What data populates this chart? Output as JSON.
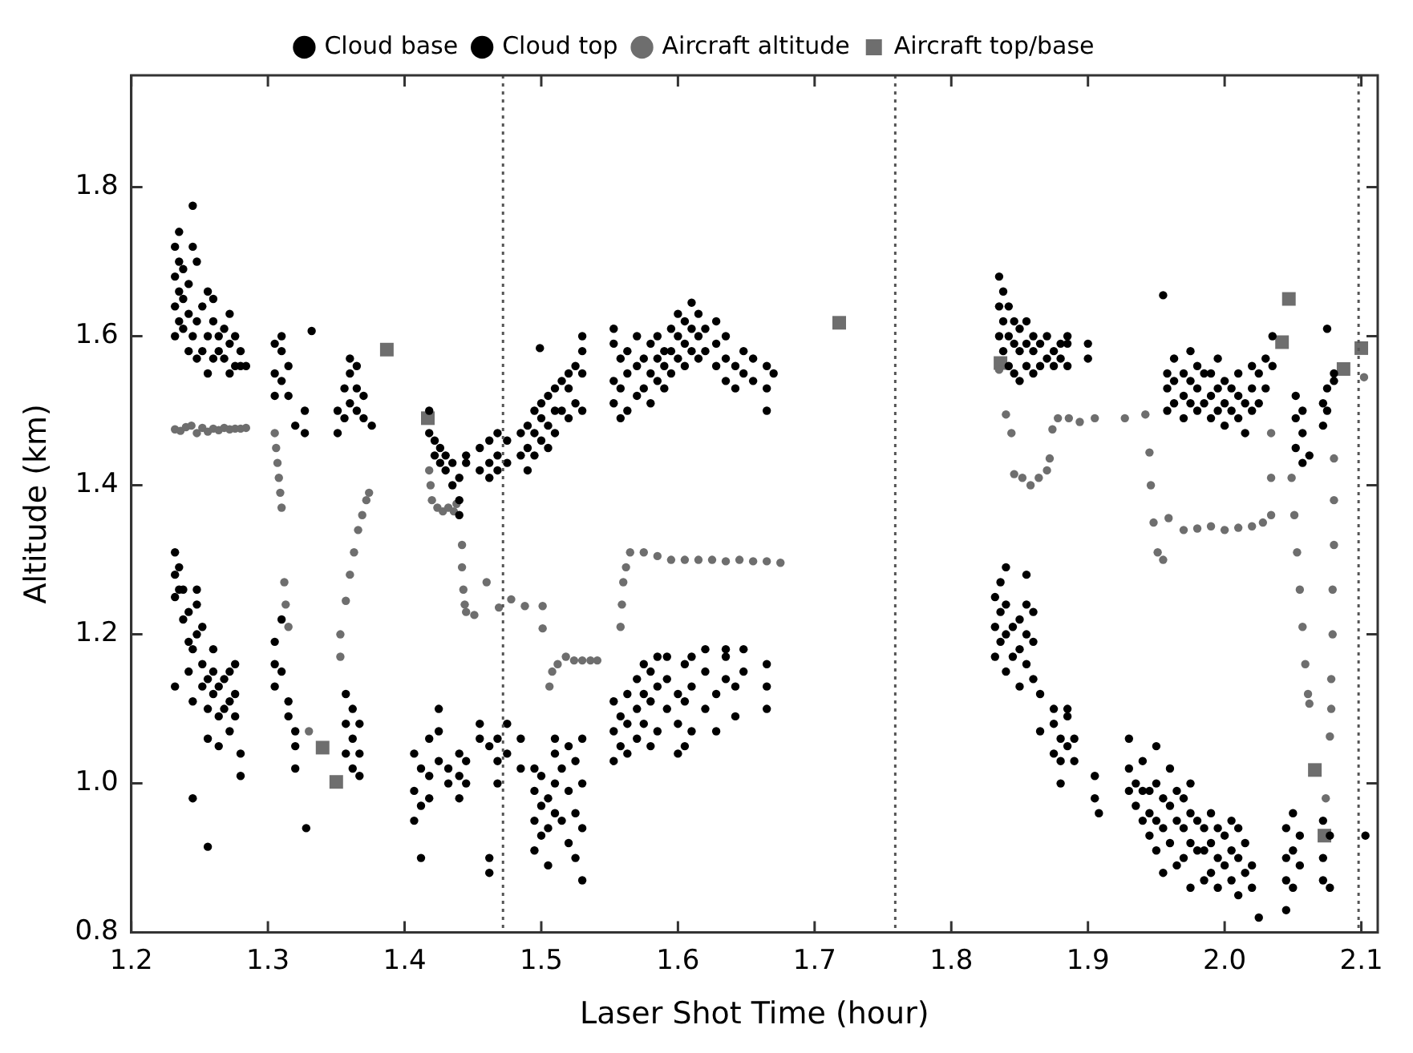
{
  "chart_data": {
    "type": "scatter",
    "xlabel": "Laser Shot Time (hour)",
    "ylabel": "Altitude (km)",
    "xlim": [
      1.2,
      2.112
    ],
    "xticks": [
      1.2,
      1.3,
      1.4,
      1.5,
      1.6,
      1.7,
      1.8,
      1.9,
      {
        "value": 2,
        "label": "2.0"
      },
      2.1
    ],
    "ylim": [
      0.8,
      1.95
    ],
    "yticks": [
      0.8,
      {
        "value": 1,
        "label": "1.0"
      },
      1.2,
      1.4,
      1.6,
      1.8
    ],
    "grid": false,
    "legend": "top",
    "ref_lines": [
      {
        "axis": "x",
        "value": 1.472,
        "color": "#555555",
        "line_style": "dotted"
      },
      {
        "axis": "x",
        "value": 1.759,
        "color": "#555555",
        "line_style": "dotted"
      },
      {
        "axis": "x",
        "value": 2.098,
        "color": "#555555",
        "line_style": "dotted"
      }
    ],
    "series": [
      {
        "name": "Cloud base",
        "color": "#000000",
        "marker": "circle",
        "x": [
          1.232,
          1.232,
          1.232,
          1.232,
          1.235,
          1.235,
          1.238,
          1.238,
          1.242,
          1.242,
          1.242,
          1.245,
          1.245,
          1.245,
          1.248,
          1.248,
          1.248,
          1.252,
          1.252,
          1.252,
          1.256,
          1.256,
          1.256,
          1.256,
          1.26,
          1.26,
          1.26,
          1.264,
          1.264,
          1.264,
          1.268,
          1.268,
          1.272,
          1.272,
          1.272,
          1.276,
          1.276,
          1.276,
          1.28,
          1.28,
          1.305,
          1.305,
          1.305,
          1.31,
          1.31,
          1.315,
          1.315,
          1.32,
          1.32,
          1.32,
          1.328,
          1.357,
          1.357,
          1.357,
          1.362,
          1.362,
          1.362,
          1.367,
          1.367,
          1.367,
          1.407,
          1.407,
          1.407,
          1.412,
          1.412,
          1.412,
          1.418,
          1.418,
          1.418,
          1.425,
          1.425,
          1.425,
          1.432,
          1.432,
          1.44,
          1.44,
          1.44,
          1.445,
          1.445,
          1.455,
          1.455,
          1.462,
          1.462,
          1.462,
          1.468,
          1.468,
          1.468,
          1.475,
          1.475,
          1.485,
          1.485,
          1.495,
          1.495,
          1.495,
          1.495,
          1.5,
          1.5,
          1.5,
          1.505,
          1.505,
          1.505,
          1.51,
          1.51,
          1.51,
          1.51,
          1.515,
          1.515,
          1.52,
          1.52,
          1.52,
          1.525,
          1.525,
          1.525,
          1.53,
          1.53,
          1.53,
          1.53,
          1.553,
          1.553,
          1.553,
          1.558,
          1.558,
          1.563,
          1.563,
          1.563,
          1.57,
          1.57,
          1.57,
          1.575,
          1.575,
          1.575,
          1.58,
          1.58,
          1.58,
          1.585,
          1.585,
          1.585,
          1.592,
          1.592,
          1.592,
          1.6,
          1.6,
          1.6,
          1.605,
          1.605,
          1.605,
          1.61,
          1.61,
          1.61,
          1.62,
          1.62,
          1.62,
          1.628,
          1.628,
          1.635,
          1.635,
          1.635,
          1.642,
          1.642,
          1.648,
          1.648,
          1.665,
          1.665,
          1.665,
          1.832,
          1.832,
          1.832,
          1.836,
          1.836,
          1.836,
          1.84,
          1.84,
          1.84,
          1.84,
          1.845,
          1.845,
          1.85,
          1.85,
          1.85,
          1.855,
          1.855,
          1.855,
          1.855,
          1.86,
          1.86,
          1.86,
          1.865,
          1.865,
          1.875,
          1.875,
          1.875,
          1.88,
          1.88,
          1.88,
          1.885,
          1.885,
          1.885,
          1.89,
          1.89,
          1.905,
          1.905,
          1.908,
          1.93,
          1.93,
          1.93,
          1.935,
          1.935,
          1.94,
          1.94,
          1.94,
          1.945,
          1.945,
          1.945,
          1.95,
          1.95,
          1.95,
          1.95,
          1.955,
          1.955,
          1.955,
          1.96,
          1.96,
          1.96,
          1.965,
          1.965,
          1.965,
          1.97,
          1.97,
          1.97,
          1.975,
          1.975,
          1.975,
          1.975,
          1.98,
          1.98,
          1.985,
          1.985,
          1.985,
          1.99,
          1.99,
          1.99,
          1.995,
          1.995,
          1.995,
          2.0,
          2.0,
          2.005,
          2.005,
          2.005,
          2.01,
          2.01,
          2.01,
          2.015,
          2.015,
          2.02,
          2.02,
          2.025,
          2.045,
          2.045,
          2.045,
          2.045,
          2.05,
          2.05,
          2.05,
          2.055,
          2.055,
          2.072,
          2.072,
          2.072,
          2.077,
          2.077,
          2.103
        ],
        "values": [
          1.13,
          1.25,
          1.28,
          1.31,
          1.26,
          1.29,
          1.22,
          1.26,
          1.15,
          1.19,
          1.23,
          1.11,
          1.18,
          0.98,
          1.2,
          1.24,
          1.26,
          1.13,
          1.16,
          1.21,
          1.06,
          1.1,
          1.14,
          0.915,
          1.12,
          1.15,
          1.18,
          1.05,
          1.09,
          1.13,
          1.1,
          1.14,
          1.07,
          1.11,
          1.15,
          1.09,
          1.12,
          1.16,
          1.01,
          1.04,
          1.13,
          1.16,
          1.19,
          1.15,
          1.22,
          1.09,
          1.11,
          1.02,
          1.05,
          1.07,
          0.94,
          1.04,
          1.08,
          1.12,
          1.02,
          1.06,
          1.1,
          1.01,
          1.04,
          1.08,
          0.95,
          0.99,
          1.04,
          0.9,
          0.97,
          1.02,
          0.98,
          1.01,
          1.06,
          1.03,
          1.07,
          1.1,
          1.0,
          1.02,
          0.98,
          1.01,
          1.04,
          1.0,
          1.03,
          1.08,
          1.06,
          0.88,
          0.9,
          1.05,
          1.0,
          1.03,
          1.06,
          1.04,
          1.08,
          1.02,
          1.06,
          0.91,
          0.95,
          0.99,
          1.02,
          0.93,
          0.97,
          1.01,
          0.89,
          0.94,
          0.98,
          0.96,
          1.0,
          1.04,
          1.06,
          0.95,
          1.02,
          0.92,
          0.99,
          1.05,
          0.9,
          0.96,
          1.03,
          0.87,
          0.94,
          1.0,
          1.06,
          1.03,
          1.07,
          1.11,
          1.05,
          1.09,
          1.04,
          1.08,
          1.12,
          1.06,
          1.1,
          1.14,
          1.08,
          1.12,
          1.16,
          1.05,
          1.11,
          1.15,
          1.07,
          1.13,
          1.17,
          1.1,
          1.14,
          1.17,
          1.04,
          1.08,
          1.12,
          1.05,
          1.11,
          1.16,
          1.07,
          1.13,
          1.17,
          1.1,
          1.15,
          1.18,
          1.07,
          1.12,
          1.14,
          1.17,
          1.18,
          1.09,
          1.13,
          1.15,
          1.18,
          1.1,
          1.13,
          1.16,
          1.17,
          1.21,
          1.25,
          1.19,
          1.23,
          1.27,
          1.15,
          1.2,
          1.24,
          1.29,
          1.17,
          1.21,
          1.13,
          1.18,
          1.22,
          1.16,
          1.2,
          1.24,
          1.28,
          1.14,
          1.19,
          1.23,
          1.07,
          1.12,
          1.04,
          1.08,
          1.1,
          1.0,
          1.03,
          1.06,
          1.05,
          1.09,
          1.1,
          1.03,
          1.06,
          0.98,
          1.01,
          0.96,
          0.99,
          1.02,
          1.06,
          0.97,
          1.0,
          0.95,
          0.99,
          1.03,
          0.93,
          0.96,
          0.99,
          0.91,
          0.95,
          1.0,
          1.05,
          0.88,
          0.94,
          0.98,
          0.92,
          0.97,
          1.02,
          0.89,
          0.95,
          0.99,
          0.9,
          0.94,
          0.98,
          0.86,
          0.92,
          0.96,
          1.0,
          0.91,
          0.95,
          0.87,
          0.91,
          0.94,
          0.88,
          0.92,
          0.96,
          0.86,
          0.9,
          0.94,
          0.89,
          0.93,
          0.87,
          0.91,
          0.95,
          0.85,
          0.9,
          0.94,
          0.88,
          0.92,
          0.86,
          0.89,
          0.82,
          0.83,
          0.87,
          0.9,
          0.94,
          0.86,
          0.91,
          0.96,
          0.89,
          0.93,
          0.87,
          0.9,
          0.95,
          0.86,
          0.93,
          0.93
        ]
      },
      {
        "name": "Cloud top",
        "color": "#000000",
        "marker": "circle",
        "x": [
          1.232,
          1.232,
          1.232,
          1.232,
          1.235,
          1.235,
          1.235,
          1.235,
          1.238,
          1.238,
          1.238,
          1.242,
          1.242,
          1.242,
          1.245,
          1.245,
          1.245,
          1.248,
          1.248,
          1.248,
          1.252,
          1.252,
          1.256,
          1.256,
          1.256,
          1.26,
          1.26,
          1.26,
          1.264,
          1.264,
          1.268,
          1.268,
          1.272,
          1.272,
          1.272,
          1.276,
          1.276,
          1.28,
          1.28,
          1.284,
          1.305,
          1.305,
          1.305,
          1.31,
          1.31,
          1.31,
          1.315,
          1.315,
          1.32,
          1.327,
          1.327,
          1.332,
          1.351,
          1.351,
          1.356,
          1.356,
          1.36,
          1.36,
          1.36,
          1.365,
          1.365,
          1.365,
          1.37,
          1.37,
          1.376,
          1.418,
          1.418,
          1.422,
          1.422,
          1.426,
          1.426,
          1.43,
          1.43,
          1.435,
          1.435,
          1.44,
          1.44,
          1.44,
          1.445,
          1.445,
          1.455,
          1.455,
          1.462,
          1.462,
          1.462,
          1.468,
          1.468,
          1.468,
          1.475,
          1.475,
          1.485,
          1.485,
          1.49,
          1.49,
          1.49,
          1.495,
          1.495,
          1.495,
          1.499,
          1.5,
          1.5,
          1.5,
          1.505,
          1.505,
          1.505,
          1.51,
          1.51,
          1.51,
          1.515,
          1.515,
          1.52,
          1.52,
          1.52,
          1.525,
          1.525,
          1.53,
          1.53,
          1.53,
          1.53,
          1.553,
          1.553,
          1.553,
          1.553,
          1.558,
          1.558,
          1.558,
          1.563,
          1.563,
          1.563,
          1.57,
          1.57,
          1.57,
          1.575,
          1.575,
          1.58,
          1.58,
          1.58,
          1.585,
          1.585,
          1.585,
          1.59,
          1.59,
          1.59,
          1.595,
          1.595,
          1.595,
          1.6,
          1.6,
          1.6,
          1.605,
          1.605,
          1.605,
          1.61,
          1.61,
          1.61,
          1.615,
          1.615,
          1.615,
          1.62,
          1.62,
          1.628,
          1.628,
          1.628,
          1.635,
          1.635,
          1.635,
          1.642,
          1.642,
          1.648,
          1.648,
          1.655,
          1.655,
          1.665,
          1.665,
          1.665,
          1.67,
          1.835,
          1.835,
          1.835,
          1.838,
          1.838,
          1.838,
          1.842,
          1.842,
          1.842,
          1.846,
          1.846,
          1.846,
          1.85,
          1.85,
          1.85,
          1.855,
          1.855,
          1.855,
          1.86,
          1.86,
          1.86,
          1.865,
          1.865,
          1.87,
          1.87,
          1.875,
          1.875,
          1.88,
          1.88,
          1.885,
          1.885,
          1.885,
          1.9,
          1.9,
          1.955,
          1.958,
          1.958,
          1.958,
          1.963,
          1.963,
          1.963,
          1.97,
          1.97,
          1.97,
          1.975,
          1.975,
          1.975,
          1.98,
          1.98,
          1.98,
          1.985,
          1.985,
          1.99,
          1.99,
          1.99,
          1.995,
          1.995,
          1.995,
          2.0,
          2.0,
          2.0,
          2.005,
          2.005,
          2.01,
          2.01,
          2.01,
          2.015,
          2.015,
          2.02,
          2.02,
          2.02,
          2.025,
          2.025,
          2.03,
          2.03,
          2.035,
          2.035,
          2.052,
          2.052,
          2.052,
          2.057,
          2.057,
          2.057,
          2.062,
          2.072,
          2.072,
          2.075,
          2.075,
          2.075,
          2.08,
          2.08
        ],
        "values": [
          1.6,
          1.64,
          1.68,
          1.72,
          1.62,
          1.66,
          1.7,
          1.74,
          1.61,
          1.65,
          1.69,
          1.58,
          1.63,
          1.67,
          1.6,
          1.72,
          1.775,
          1.57,
          1.62,
          1.7,
          1.58,
          1.64,
          1.55,
          1.6,
          1.66,
          1.57,
          1.62,
          1.65,
          1.58,
          1.6,
          1.57,
          1.61,
          1.55,
          1.59,
          1.63,
          1.56,
          1.6,
          1.56,
          1.58,
          1.56,
          1.52,
          1.55,
          1.59,
          1.54,
          1.58,
          1.6,
          1.52,
          1.56,
          1.48,
          1.47,
          1.5,
          1.607,
          1.47,
          1.5,
          1.49,
          1.53,
          1.51,
          1.55,
          1.57,
          1.5,
          1.53,
          1.56,
          1.49,
          1.52,
          1.48,
          1.5,
          1.47,
          1.44,
          1.46,
          1.43,
          1.45,
          1.42,
          1.44,
          1.4,
          1.43,
          1.38,
          1.41,
          1.36,
          1.44,
          1.43,
          1.42,
          1.45,
          1.43,
          1.46,
          1.41,
          1.42,
          1.47,
          1.44,
          1.43,
          1.46,
          1.44,
          1.47,
          1.45,
          1.48,
          1.42,
          1.44,
          1.47,
          1.5,
          1.584,
          1.46,
          1.49,
          1.51,
          1.48,
          1.52,
          1.45,
          1.47,
          1.5,
          1.53,
          1.5,
          1.54,
          1.49,
          1.53,
          1.55,
          1.51,
          1.56,
          1.5,
          1.55,
          1.58,
          1.6,
          1.51,
          1.54,
          1.59,
          1.61,
          1.49,
          1.53,
          1.57,
          1.5,
          1.55,
          1.58,
          1.52,
          1.56,
          1.6,
          1.53,
          1.57,
          1.51,
          1.55,
          1.59,
          1.54,
          1.57,
          1.6,
          1.53,
          1.56,
          1.58,
          1.55,
          1.58,
          1.61,
          1.57,
          1.6,
          1.63,
          1.56,
          1.59,
          1.62,
          1.58,
          1.61,
          1.645,
          1.57,
          1.6,
          1.63,
          1.58,
          1.61,
          1.56,
          1.59,
          1.62,
          1.54,
          1.57,
          1.6,
          1.53,
          1.56,
          1.55,
          1.58,
          1.54,
          1.57,
          1.5,
          1.53,
          1.56,
          1.55,
          1.6,
          1.64,
          1.68,
          1.58,
          1.62,
          1.66,
          1.56,
          1.6,
          1.64,
          1.55,
          1.59,
          1.62,
          1.54,
          1.58,
          1.61,
          1.56,
          1.59,
          1.62,
          1.55,
          1.58,
          1.6,
          1.56,
          1.59,
          1.57,
          1.6,
          1.56,
          1.58,
          1.57,
          1.59,
          1.56,
          1.59,
          1.6,
          1.57,
          1.59,
          1.655,
          1.5,
          1.53,
          1.55,
          1.51,
          1.54,
          1.57,
          1.49,
          1.52,
          1.55,
          1.51,
          1.54,
          1.58,
          1.5,
          1.53,
          1.56,
          1.51,
          1.55,
          1.49,
          1.52,
          1.55,
          1.5,
          1.53,
          1.57,
          1.48,
          1.51,
          1.54,
          1.5,
          1.53,
          1.49,
          1.52,
          1.55,
          1.47,
          1.51,
          1.5,
          1.53,
          1.56,
          1.51,
          1.55,
          1.53,
          1.57,
          1.56,
          1.6,
          1.45,
          1.49,
          1.52,
          1.43,
          1.47,
          1.5,
          1.44,
          1.48,
          1.51,
          1.5,
          1.53,
          1.61,
          1.54,
          1.55
        ]
      },
      {
        "name": "Aircraft altitude",
        "color": "#6e6e6e",
        "marker": "circle",
        "x": [
          1.232,
          1.236,
          1.24,
          1.244,
          1.248,
          1.252,
          1.256,
          1.26,
          1.264,
          1.268,
          1.272,
          1.276,
          1.28,
          1.284,
          1.305,
          1.306,
          1.307,
          1.308,
          1.309,
          1.31,
          1.312,
          1.313,
          1.315,
          1.33,
          1.353,
          1.353,
          1.357,
          1.36,
          1.363,
          1.366,
          1.369,
          1.372,
          1.374,
          1.418,
          1.419,
          1.42,
          1.424,
          1.428,
          1.432,
          1.436,
          1.438,
          1.442,
          1.442,
          1.443,
          1.444,
          1.445,
          1.451,
          1.46,
          1.469,
          1.478,
          1.488,
          1.501,
          1.501,
          1.506,
          1.508,
          1.512,
          1.518,
          1.524,
          1.53,
          1.536,
          1.541,
          1.558,
          1.559,
          1.56,
          1.562,
          1.565,
          1.575,
          1.585,
          1.595,
          1.605,
          1.615,
          1.625,
          1.635,
          1.645,
          1.655,
          1.665,
          1.675,
          1.835,
          1.84,
          1.844,
          1.846,
          1.852,
          1.858,
          1.864,
          1.87,
          1.872,
          1.874,
          1.878,
          1.886,
          1.894,
          1.905,
          1.927,
          1.942,
          1.945,
          1.946,
          1.948,
          1.951,
          1.955,
          1.959,
          1.97,
          1.98,
          1.99,
          2.0,
          2.01,
          2.02,
          2.028,
          2.034,
          2.034,
          2.034,
          2.049,
          2.051,
          2.053,
          2.055,
          2.057,
          2.059,
          2.061,
          2.062,
          2.08,
          2.08,
          2.08,
          2.079,
          2.079,
          2.078,
          2.078,
          2.077,
          2.074,
          2.102
        ],
        "values": [
          1.475,
          1.473,
          1.478,
          1.48,
          1.47,
          1.477,
          1.472,
          1.476,
          1.474,
          1.477,
          1.475,
          1.476,
          1.476,
          1.477,
          1.47,
          1.45,
          1.43,
          1.41,
          1.39,
          1.37,
          1.27,
          1.24,
          1.21,
          1.07,
          1.17,
          1.2,
          1.245,
          1.28,
          1.31,
          1.34,
          1.36,
          1.38,
          1.39,
          1.42,
          1.4,
          1.38,
          1.37,
          1.365,
          1.37,
          1.365,
          1.375,
          1.32,
          1.29,
          1.26,
          1.24,
          1.23,
          1.226,
          1.27,
          1.236,
          1.247,
          1.238,
          1.238,
          1.208,
          1.13,
          1.15,
          1.16,
          1.17,
          1.165,
          1.165,
          1.165,
          1.165,
          1.21,
          1.24,
          1.27,
          1.29,
          1.31,
          1.31,
          1.305,
          1.3,
          1.3,
          1.3,
          1.3,
          1.298,
          1.3,
          1.298,
          1.298,
          1.296,
          1.555,
          1.495,
          1.47,
          1.415,
          1.41,
          1.4,
          1.41,
          1.42,
          1.436,
          1.475,
          1.49,
          1.49,
          1.485,
          1.49,
          1.49,
          1.495,
          1.444,
          1.4,
          1.35,
          1.31,
          1.3,
          1.356,
          1.34,
          1.342,
          1.345,
          1.34,
          1.343,
          1.345,
          1.35,
          1.36,
          1.41,
          1.47,
          1.41,
          1.36,
          1.31,
          1.26,
          1.21,
          1.16,
          1.12,
          1.107,
          1.436,
          1.38,
          1.32,
          1.26,
          1.2,
          1.14,
          1.1,
          1.063,
          0.98,
          1.545
        ]
      },
      {
        "name": "Aircraft top/base",
        "color": "#6e6e6e",
        "marker": "square",
        "x": [
          1.34,
          1.35,
          1.387,
          1.417,
          1.718,
          1.836,
          2.042,
          2.047,
          2.066,
          2.073,
          2.087,
          2.1
        ],
        "values": [
          1.048,
          1.002,
          1.582,
          1.49,
          1.618,
          1.564,
          1.592,
          1.65,
          1.018,
          0.93,
          1.556,
          1.584
        ]
      }
    ]
  }
}
